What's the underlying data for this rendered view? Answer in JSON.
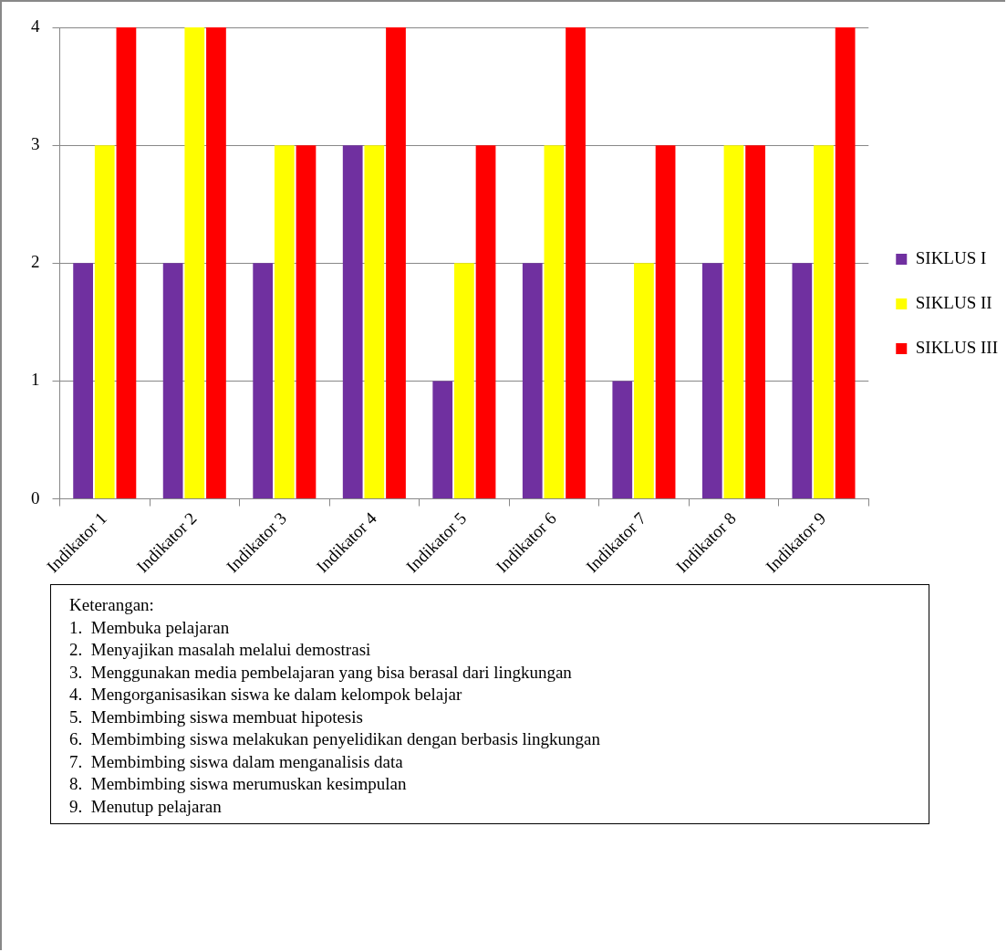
{
  "chart_data": {
    "type": "bar",
    "categories": [
      "Indikator 1",
      "Indikator 2",
      "Indikator 3",
      "Indikator 4",
      "Indikator 5",
      "Indikator 6",
      "Indikator 7",
      "Indikator 8",
      "Indikator 9"
    ],
    "series": [
      {
        "name": "SIKLUS I",
        "color": "#7030a0",
        "values": [
          2,
          2,
          2,
          3,
          1,
          2,
          1,
          2,
          2
        ]
      },
      {
        "name": "SIKLUS II",
        "color": "#ffff00",
        "values": [
          3,
          4,
          3,
          3,
          2,
          3,
          2,
          3,
          3
        ]
      },
      {
        "name": "SIKLUS III",
        "color": "#ff0000",
        "values": [
          4,
          4,
          3,
          4,
          3,
          4,
          3,
          3,
          4
        ]
      }
    ],
    "ylim": [
      0,
      4
    ],
    "yticks": [
      0,
      1,
      2,
      3,
      4
    ],
    "grid": "y",
    "legend": "right",
    "annotations": [
      "Keterangan:",
      "1.  Membuka pelajaran",
      "2.  Menyajikan masalah melalui demostrasi",
      "3.  Menggunakan media pembelajaran yang bisa berasal dari lingkungan",
      "4.  Mengorganisasikan siswa ke dalam kelompok belajar",
      "5.  Membimbing siswa membuat hipotesis",
      "6.  Membimbing siswa melakukan penyelidikan dengan berbasis lingkungan",
      "7.  Membimbing siswa dalam menganalisis data",
      "8.  Membimbing siswa merumuskan kesimpulan",
      "9.  Menutup pelajaran"
    ]
  }
}
